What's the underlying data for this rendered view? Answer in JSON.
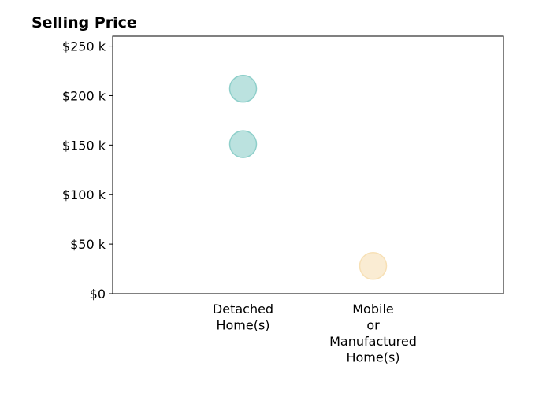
{
  "chart_data": {
    "type": "scatter",
    "title": "Selling Price",
    "xlabel": "",
    "ylabel": "",
    "categories": [
      [
        "Detached",
        "Home(s)"
      ],
      [
        "Mobile",
        "or",
        "Manufactured",
        "Home(s)"
      ]
    ],
    "y_ticks": [
      "$0",
      "$50 k",
      "$100 k",
      "$150 k",
      "$200 k",
      "$250 k"
    ],
    "y_tick_values": [
      0,
      50000,
      100000,
      150000,
      200000,
      250000
    ],
    "ylim": [
      0,
      260000
    ],
    "grid": false,
    "points": [
      {
        "category": "Detached Home(s)",
        "y": 207000,
        "color": "#8ecfca"
      },
      {
        "category": "Detached Home(s)",
        "y": 151000,
        "color": "#8ecfca"
      },
      {
        "category": "Mobile or Manufactured Home(s)",
        "y": 28000,
        "color": "#f7e0b5"
      }
    ]
  }
}
